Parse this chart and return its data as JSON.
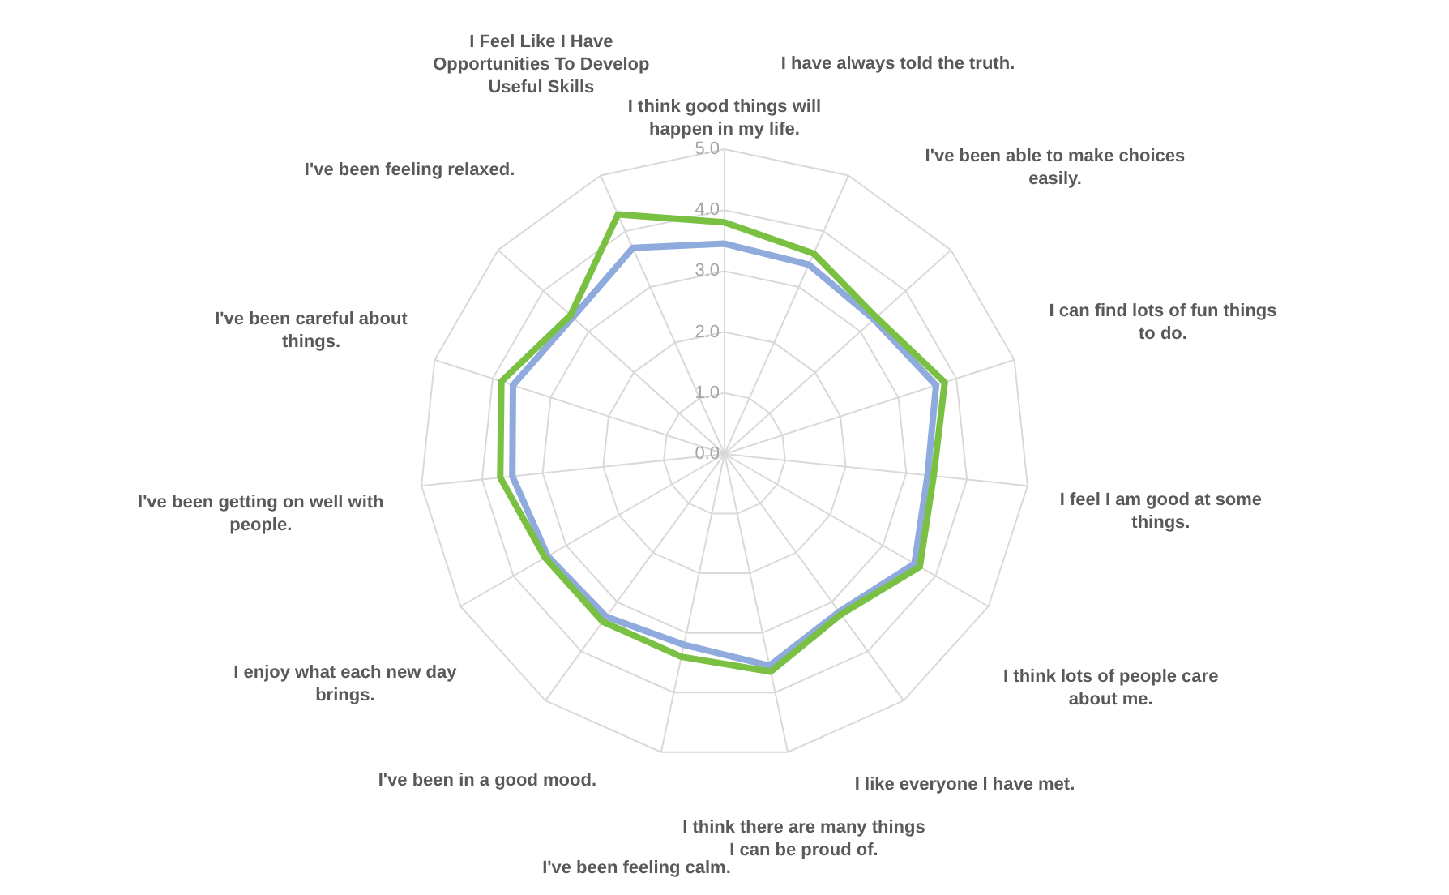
{
  "chart_data": {
    "type": "radar",
    "categories": [
      "I think good things will happen in my life.",
      "I have always told the truth.",
      "I've been able to make choices easily.",
      "I can find lots of fun things to do.",
      "I feel I am good at some things.",
      "I think lots of people care about me.",
      "I like everyone I have met.",
      "I think there are many things I can be proud of.",
      "I've been feeling calm.",
      "I've been in a good mood.",
      "I enjoy what each new day brings.",
      "I've been getting on well with people.",
      "I've been careful about things.",
      "I've been feeling relaxed.",
      "I Feel Like I Have Opportunities To Develop Useful Skills"
    ],
    "series": [
      {
        "color": "#8faadc",
        "values": [
          3.45,
          3.4,
          3.3,
          3.65,
          3.35,
          3.6,
          3.2,
          3.55,
          3.2,
          3.3,
          3.35,
          3.5,
          3.65,
          3.35,
          3.7
        ]
      },
      {
        "color": "#7ac143",
        "values": [
          3.8,
          3.6,
          3.35,
          3.8,
          3.45,
          3.7,
          3.25,
          3.65,
          3.4,
          3.4,
          3.4,
          3.7,
          3.85,
          3.4,
          4.3
        ]
      }
    ],
    "ylim": [
      0,
      5
    ],
    "yticks": [
      {
        "value": 0,
        "label": "0.0"
      },
      {
        "value": 1,
        "label": "1.0"
      },
      {
        "value": 2,
        "label": "2.0"
      },
      {
        "value": 3,
        "label": "3.0"
      },
      {
        "value": 4,
        "label": "4.0"
      },
      {
        "value": 5,
        "label": "5.0"
      }
    ],
    "grid": true,
    "marker": "none",
    "line_style": "solid"
  }
}
